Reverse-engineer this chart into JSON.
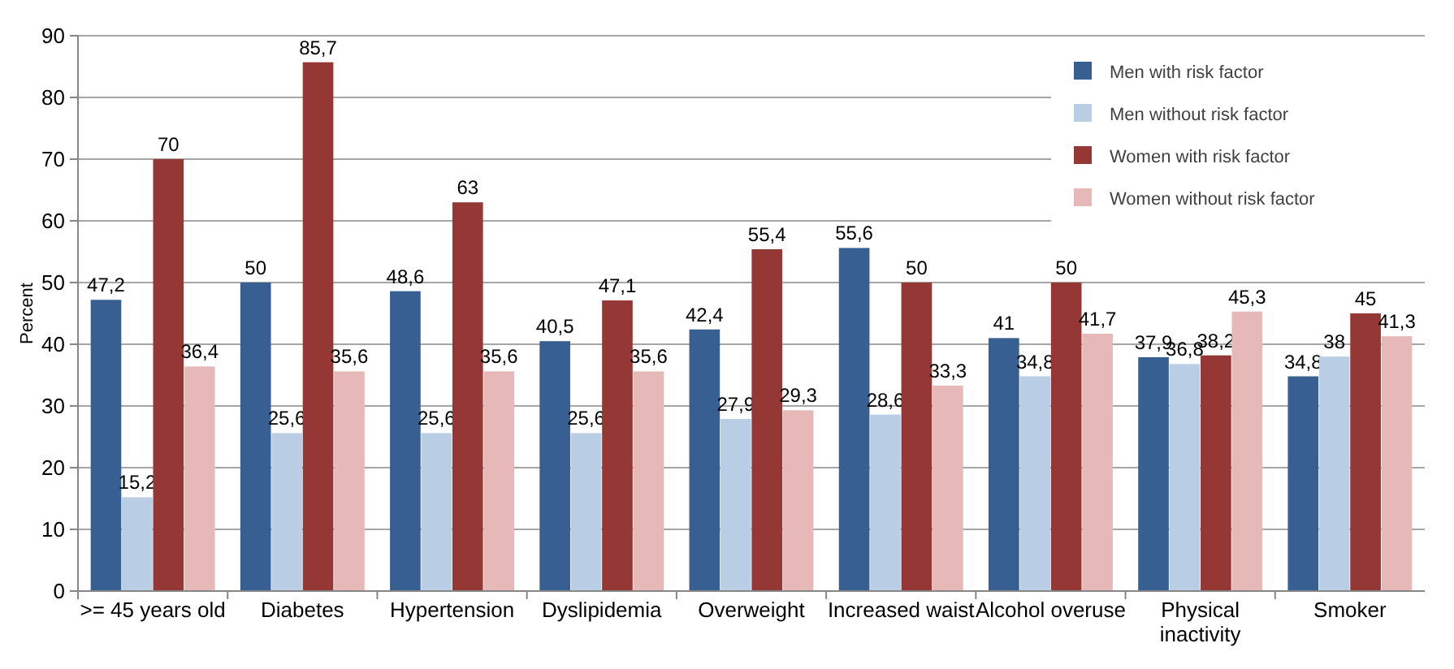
{
  "chart_data": {
    "type": "bar",
    "ylabel": "Percent",
    "categories": [
      ">= 45 years old",
      "Diabetes",
      "Hypertension",
      "Dyslipidemia",
      "Overweight",
      "Increased waist",
      "Alcohol overuse",
      "Physical inactivity",
      "Smoker"
    ],
    "series": [
      {
        "name": "Men with risk factor",
        "color": "#375f92",
        "values": [
          47.2,
          50,
          48.6,
          40.5,
          42.4,
          55.6,
          41,
          37.9,
          34.8
        ],
        "value_labels": [
          "47,2",
          "50",
          "48,6",
          "40,5",
          "42,4",
          "55,6",
          "41",
          "37,9",
          "34,8"
        ]
      },
      {
        "name": "Men without risk factor",
        "color": "#b9cde5",
        "values": [
          15.2,
          25.6,
          25.6,
          25.6,
          27.9,
          28.6,
          34.8,
          36.8,
          38
        ],
        "value_labels": [
          "15,2",
          "25,6",
          "25,6",
          "25,6",
          "27,9",
          "28,6",
          "34,8",
          "36,8",
          "38"
        ]
      },
      {
        "name": "Women with risk factor",
        "color": "#953735",
        "values": [
          70,
          85.7,
          63,
          47.1,
          55.4,
          50,
          50,
          38.2,
          45
        ],
        "value_labels": [
          "70",
          "85,7",
          "63",
          "47,1",
          "55,4",
          "50",
          "50",
          "38,2",
          "45"
        ]
      },
      {
        "name": "Women without risk factor",
        "color": "#e6b9b8",
        "values": [
          36.4,
          35.6,
          35.6,
          35.6,
          29.3,
          33.3,
          41.7,
          45.3,
          41.3
        ],
        "value_labels": [
          "36,4",
          "35,6",
          "35,6",
          "35,6",
          "29,3",
          "33,3",
          "41,7",
          "45,3",
          "41,3"
        ]
      }
    ],
    "ylim": [
      0,
      90
    ],
    "yticks": [
      0,
      10,
      20,
      30,
      40,
      50,
      60,
      70,
      80,
      90
    ],
    "grid": "y",
    "legend": "top right"
  }
}
